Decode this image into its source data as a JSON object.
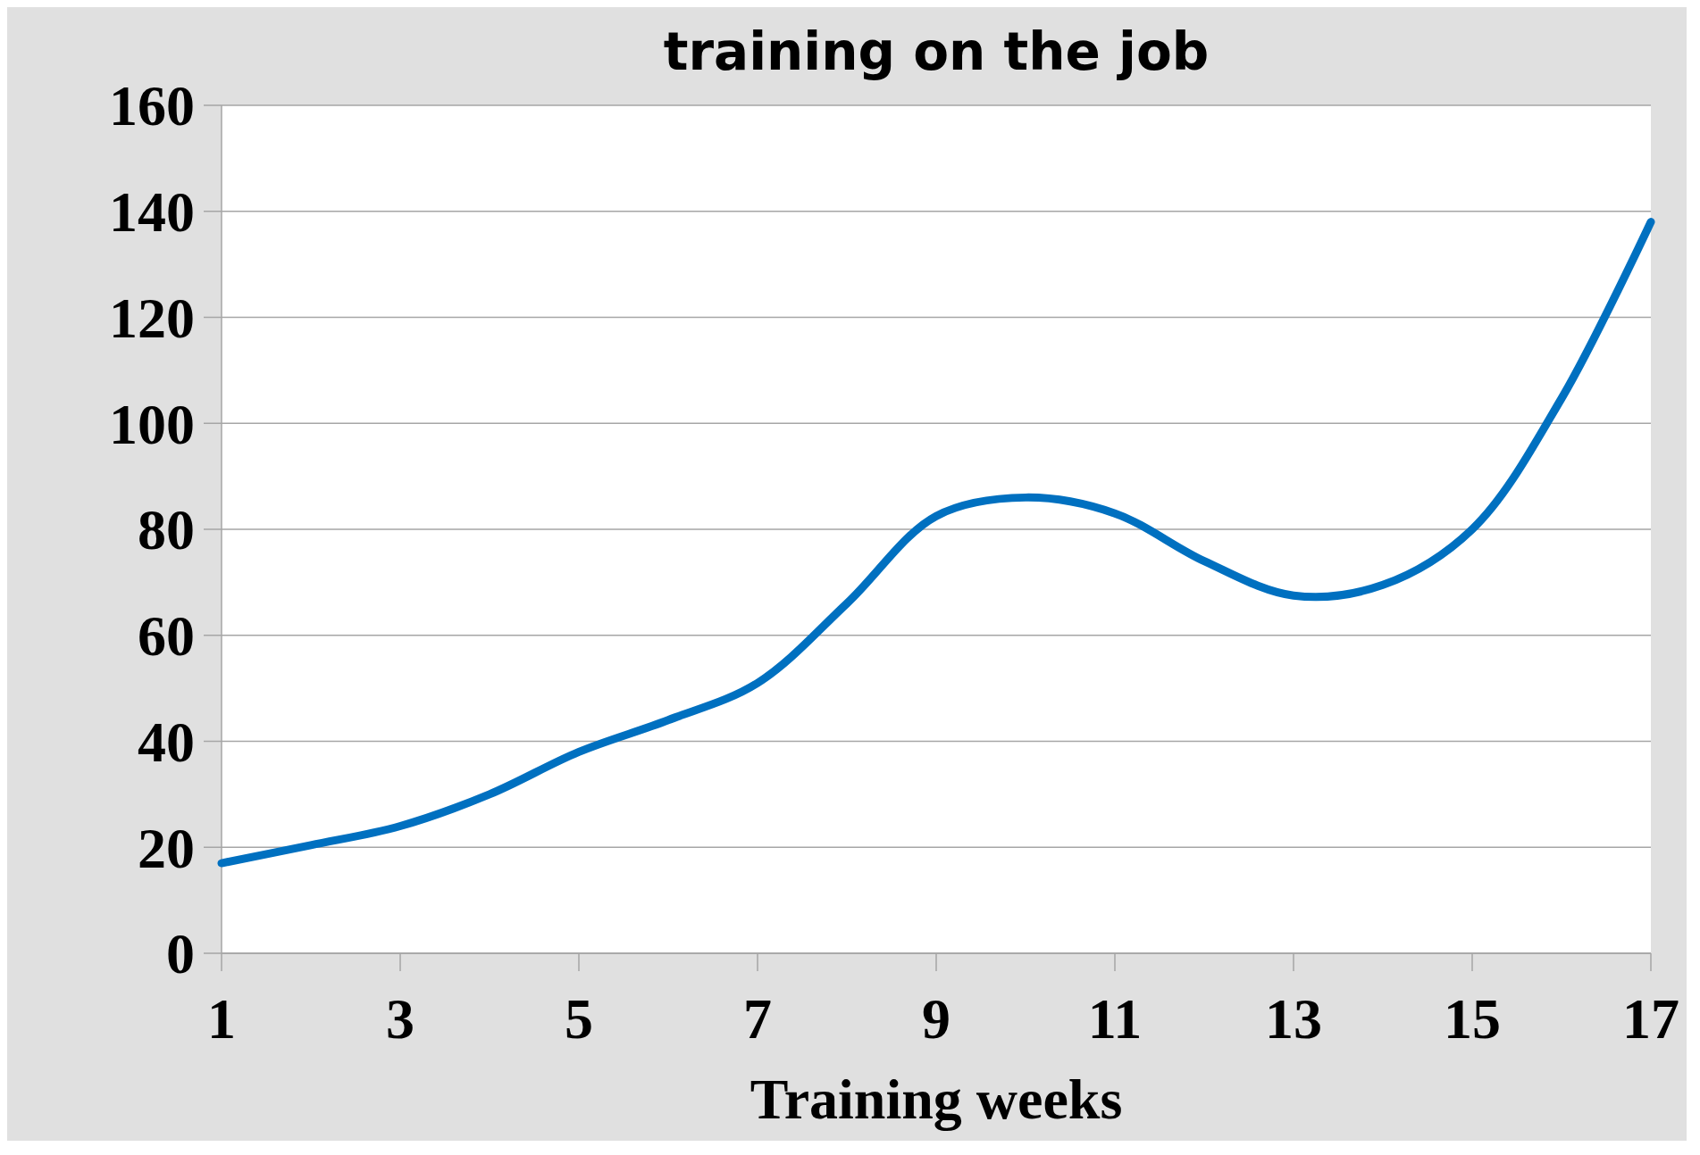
{
  "chart_data": {
    "type": "line",
    "title": "training on the job",
    "xlabel": "Training weeks",
    "x": [
      1,
      2,
      3,
      4,
      5,
      6,
      7,
      8,
      9,
      10,
      11,
      12,
      13,
      14,
      15,
      16,
      17
    ],
    "series": [
      {
        "color": "#0070c0",
        "values": [
          17,
          20.4,
          24,
          30,
          38,
          44,
          51,
          66,
          82.5,
          86,
          83,
          74,
          67.5,
          69.5,
          80,
          104.7,
          138
        ]
      }
    ],
    "xlim": [
      1,
      17
    ],
    "xticks": [
      1,
      3,
      5,
      7,
      9,
      11,
      13,
      15,
      17
    ],
    "ylim": [
      0,
      160
    ],
    "yticks": [
      0,
      20,
      40,
      60,
      80,
      100,
      120,
      140,
      160
    ],
    "grid": "y",
    "marker": "none",
    "line_style": "solid"
  }
}
